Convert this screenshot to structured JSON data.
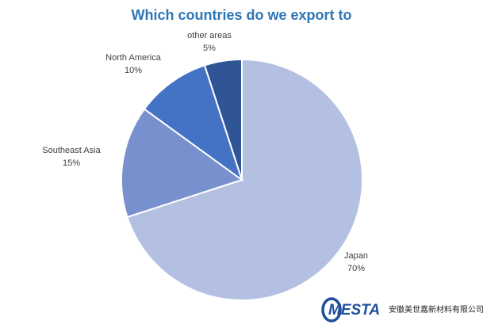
{
  "chart_data": {
    "type": "pie",
    "title": "Which countries do we export to",
    "slices": [
      {
        "name": "Japan",
        "value": 70,
        "label": "70%",
        "color": "#b4c0e1"
      },
      {
        "name": "Southeast Asia",
        "value": 15,
        "label": "15%",
        "color": "#7890cd"
      },
      {
        "name": "North America",
        "value": 10,
        "label": "10%",
        "color": "#4472c4"
      },
      {
        "name": "other areas",
        "value": 5,
        "label": "5%",
        "color": "#2f5597"
      }
    ],
    "start_angle_deg": 0,
    "direction": "clockwise",
    "legend": "none",
    "title_color": "#2e75b6"
  },
  "branding": {
    "logo_text": "MESTA",
    "company_name": "安徽美世嘉新材料有限公司",
    "logo_color": "#1f4e9c"
  }
}
